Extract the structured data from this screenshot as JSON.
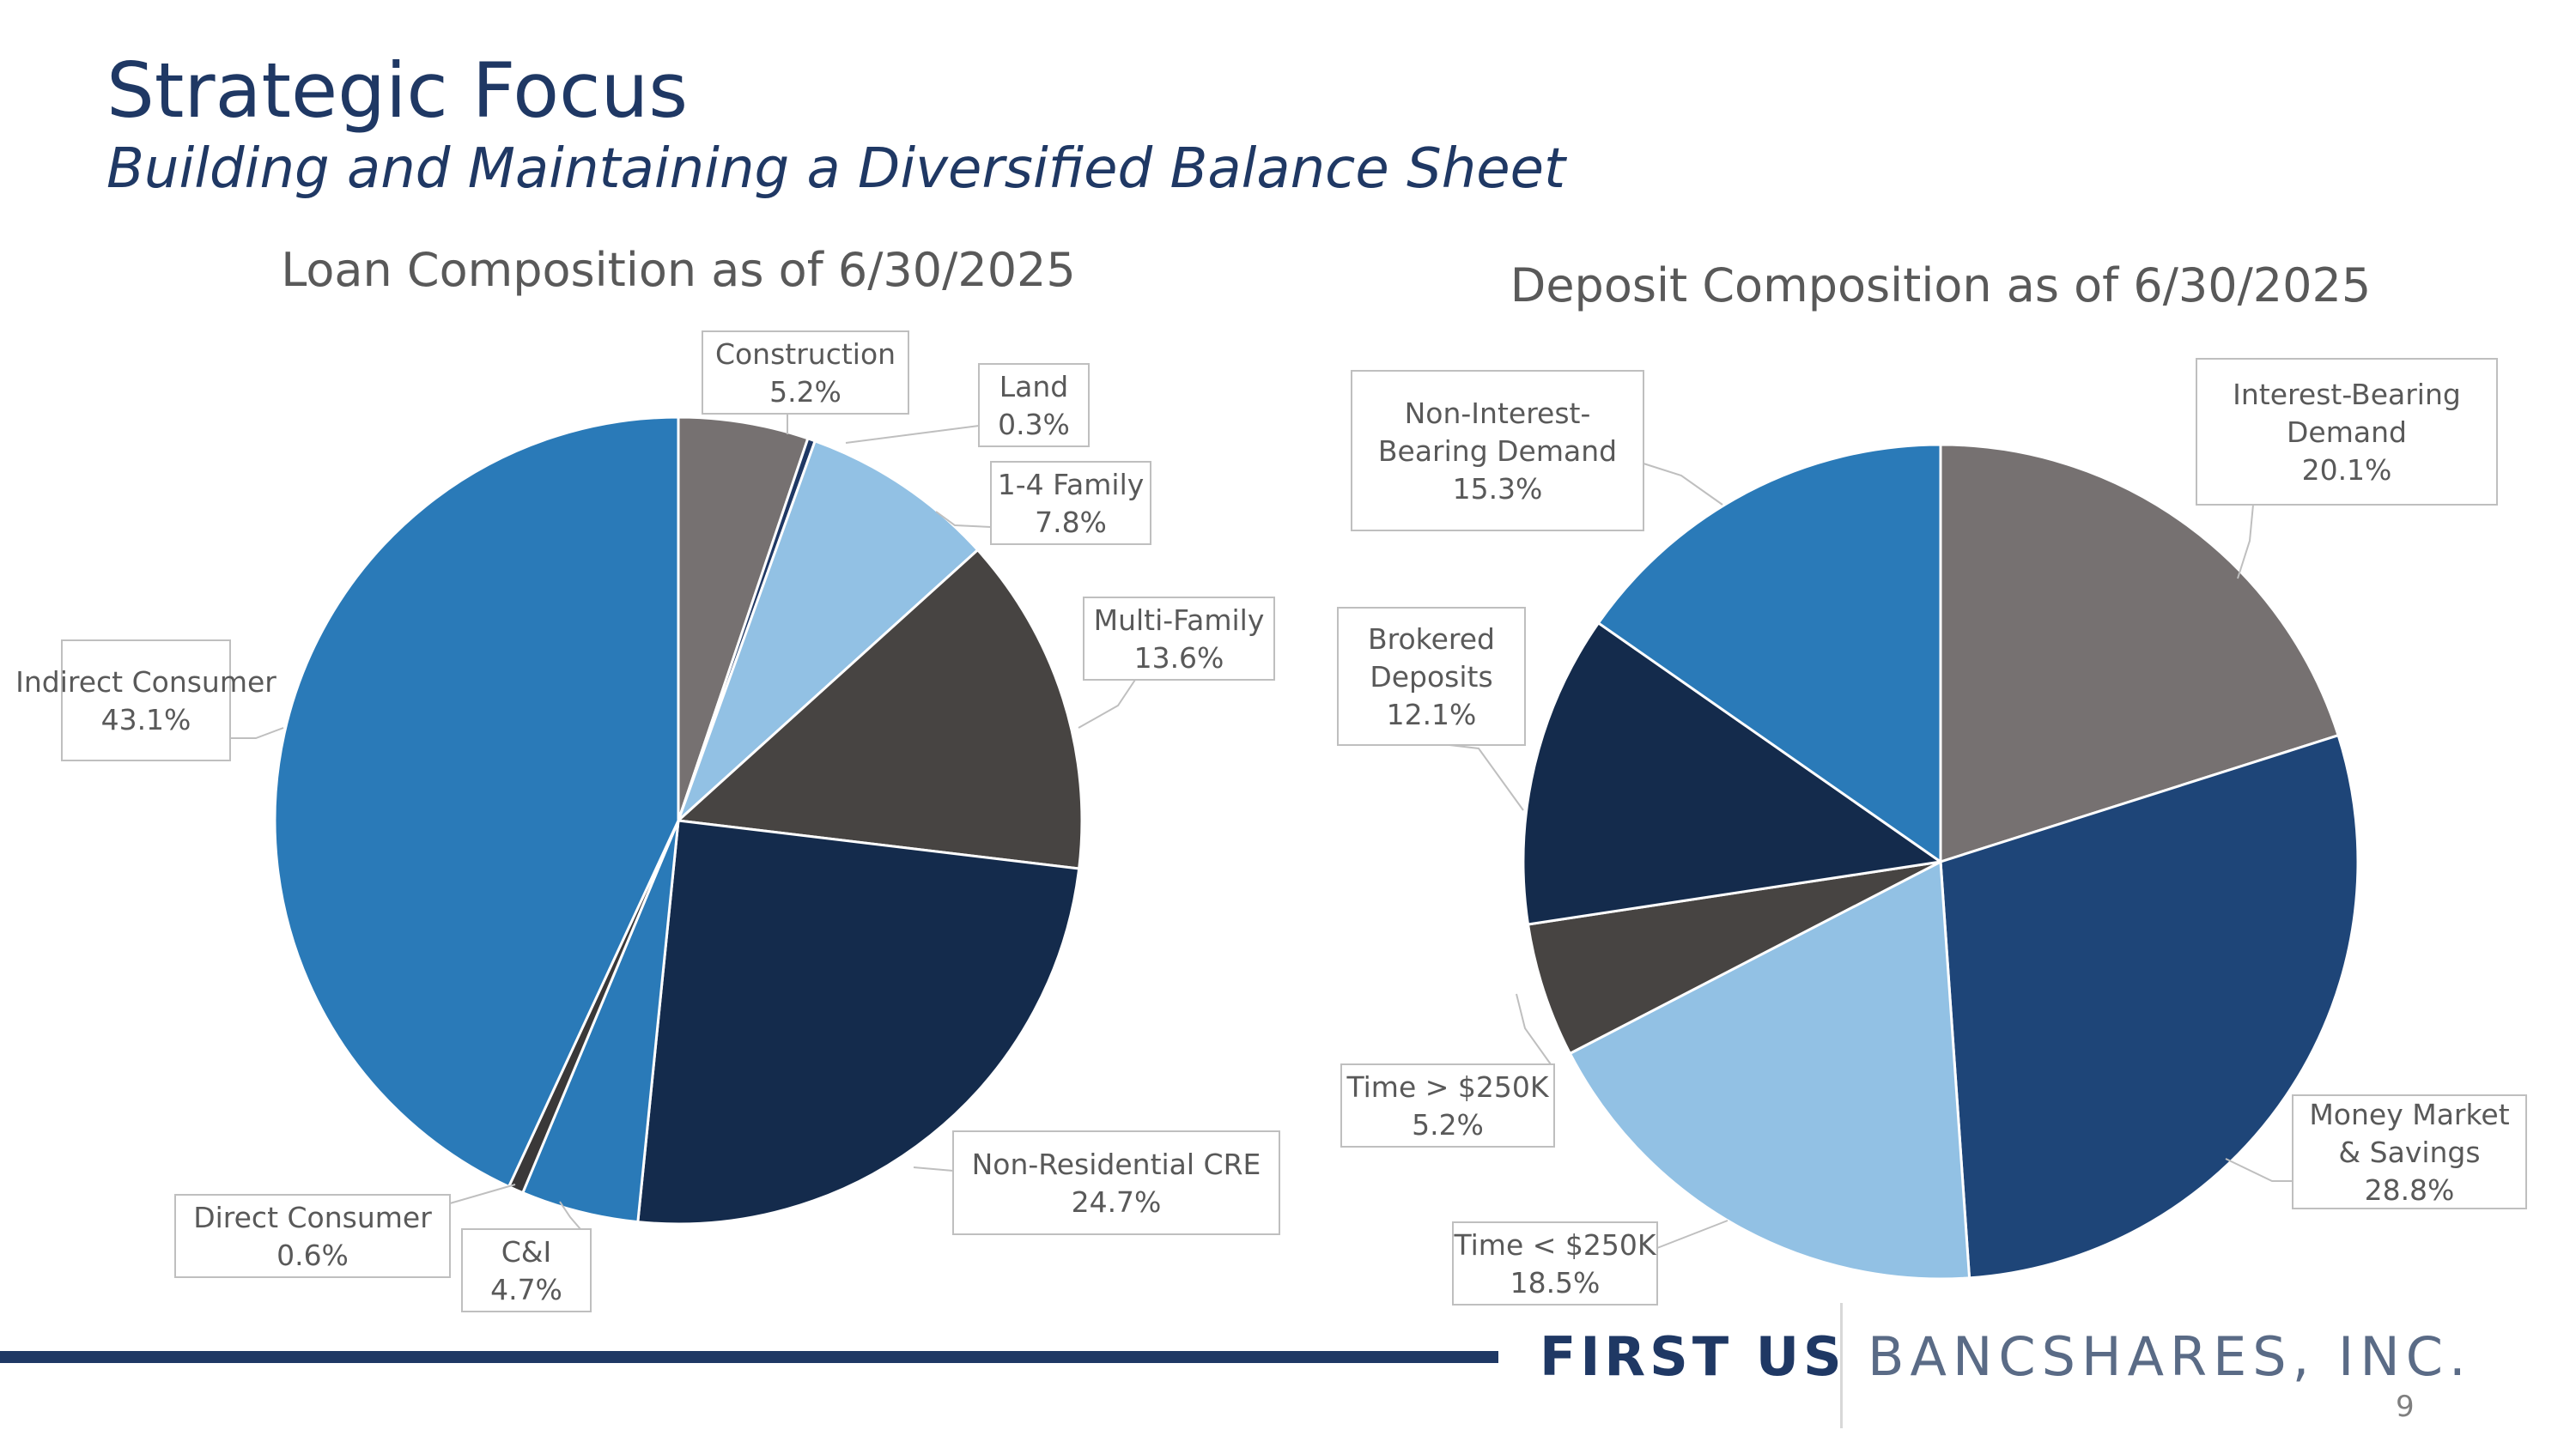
{
  "slide": {
    "title": "Strategic Focus",
    "subtitle": "Building and Maintaining a Diversified Balance Sheet",
    "brand_left": "FIRST US",
    "brand_right": "BANCSHARES, INC.",
    "page_number": "9",
    "colors": {
      "heading": "#1F3864",
      "chart_title": "#595959",
      "label_text": "#595959",
      "label_border": "#BFBFBF",
      "leader": "#BFBFBF"
    }
  },
  "chart_data": [
    {
      "type": "pie",
      "title": "Loan Composition as of 6/30/2025",
      "start_angle_deg": 0,
      "slices": [
        {
          "name": "Construction",
          "label_lines": [
            "Construction",
            "5.2%"
          ],
          "value": 5.2,
          "color": "#767171"
        },
        {
          "name": "Land",
          "label_lines": [
            "Land",
            "0.3%"
          ],
          "value": 0.3,
          "color": "#1F3864"
        },
        {
          "name": "1-4 Family",
          "label_lines": [
            "1-4 Family",
            "7.8%"
          ],
          "value": 7.8,
          "color": "#92C1E4"
        },
        {
          "name": "Multi-Family",
          "label_lines": [
            "Multi-Family",
            "13.6%"
          ],
          "value": 13.6,
          "color": "#474442"
        },
        {
          "name": "Non-Residential CRE",
          "label_lines": [
            "Non-Residential CRE",
            "24.7%"
          ],
          "value": 24.7,
          "color": "#142B4C"
        },
        {
          "name": "C&I",
          "label_lines": [
            "C&I",
            "4.7%"
          ],
          "value": 4.7,
          "color": "#2A7AB8"
        },
        {
          "name": "Direct Consumer",
          "label_lines": [
            "Direct Consumer",
            "0.6%"
          ],
          "value": 0.6,
          "color": "#3A3838"
        },
        {
          "name": "Indirect Consumer",
          "label_lines": [
            "Indirect Consumer",
            "43.1%"
          ],
          "value": 43.1,
          "color": "#2A7AB8"
        }
      ]
    },
    {
      "type": "pie",
      "title": "Deposit Composition as of 6/30/2025",
      "start_angle_deg": 0,
      "slices": [
        {
          "name": "Interest-Bearing Demand",
          "label_lines": [
            "Interest-Bearing",
            "Demand",
            "20.1%"
          ],
          "value": 20.1,
          "color": "#767171"
        },
        {
          "name": "Money Market & Savings",
          "label_lines": [
            "Money Market",
            "& Savings",
            "28.8%"
          ],
          "value": 28.8,
          "color": "#1E4578"
        },
        {
          "name": "Time < $250K",
          "label_lines": [
            "Time < $250K",
            "18.5%"
          ],
          "value": 18.5,
          "color": "#92C1E4"
        },
        {
          "name": "Time > $250K",
          "label_lines": [
            "Time > $250K",
            "5.2%"
          ],
          "value": 5.2,
          "color": "#474442"
        },
        {
          "name": "Brokered Deposits",
          "label_lines": [
            "Brokered",
            "Deposits",
            "12.1%"
          ],
          "value": 12.1,
          "color": "#142B4C"
        },
        {
          "name": "Non-Interest-Bearing Demand",
          "label_lines": [
            "Non-Interest-",
            "Bearing Demand",
            "15.3%"
          ],
          "value": 15.3,
          "color": "#2A7AB8"
        }
      ]
    }
  ]
}
